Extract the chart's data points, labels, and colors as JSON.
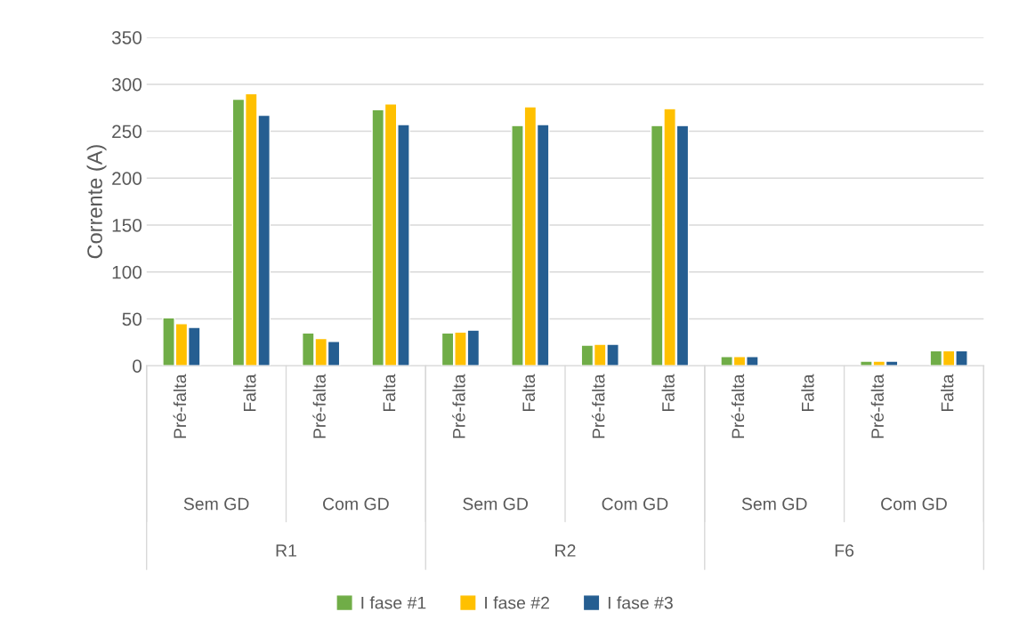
{
  "chart_data": {
    "type": "bar",
    "ylabel": "Corrente (A)",
    "categories": [
      "Pré-falta",
      "Falta",
      "Pré-falta",
      "Falta",
      "Pré-falta",
      "Falta",
      "Pré-falta",
      "Falta",
      "Pré-falta",
      "Falta",
      "Pré-falta",
      "Falta"
    ],
    "series": [
      {
        "name": "I fase #1",
        "color": "#70ad47",
        "values": [
          51,
          284,
          35,
          273,
          35,
          256,
          22,
          256,
          10,
          null,
          5,
          16
        ]
      },
      {
        "name": "I fase #2",
        "color": "#ffc000",
        "values": [
          45,
          290,
          29,
          279,
          36,
          276,
          23,
          274,
          10,
          null,
          5,
          16
        ]
      },
      {
        "name": "I fase #3",
        "color": "#255e91",
        "values": [
          41,
          267,
          26,
          257,
          38,
          257,
          23,
          256,
          10,
          null,
          5,
          16
        ]
      }
    ],
    "annotations": [
      "Sem GD",
      "Com GD",
      "Sem GD",
      "Com GD",
      "Sem GD",
      "Com GD",
      "R1",
      "R2",
      "F6"
    ],
    "ylim": [
      0,
      350
    ],
    "yticks": [
      0,
      50,
      100,
      150,
      200,
      250,
      300,
      350
    ],
    "grid": "y",
    "legend": "bottom"
  }
}
